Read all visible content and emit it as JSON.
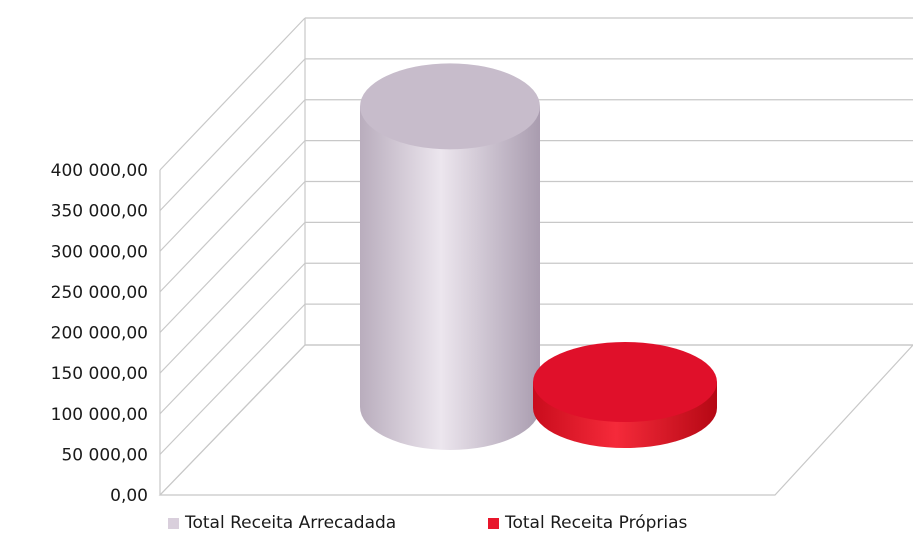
{
  "chart_data": {
    "type": "bar",
    "style": "3d-cylinder",
    "categories": [
      "Total Receita Arrecadada",
      "Total Receita Próprias"
    ],
    "values": [
      370000,
      32000
    ],
    "colors": [
      "#d9cfdc",
      "#e8162b"
    ],
    "ylim": [
      0,
      400000
    ],
    "y_ticks": [
      "0,00",
      "50 000,00",
      "100 000,00",
      "150 000,00",
      "200 000,00",
      "250 000,00",
      "300 000,00",
      "350 000,00",
      "400 000,00"
    ],
    "legend": {
      "placement": "bottom",
      "items": [
        {
          "label": "Total Receita Arrecadada",
          "color": "#d9cfdc"
        },
        {
          "label": "Total Receita Próprias",
          "color": "#e8162b"
        }
      ]
    },
    "grid": true
  }
}
